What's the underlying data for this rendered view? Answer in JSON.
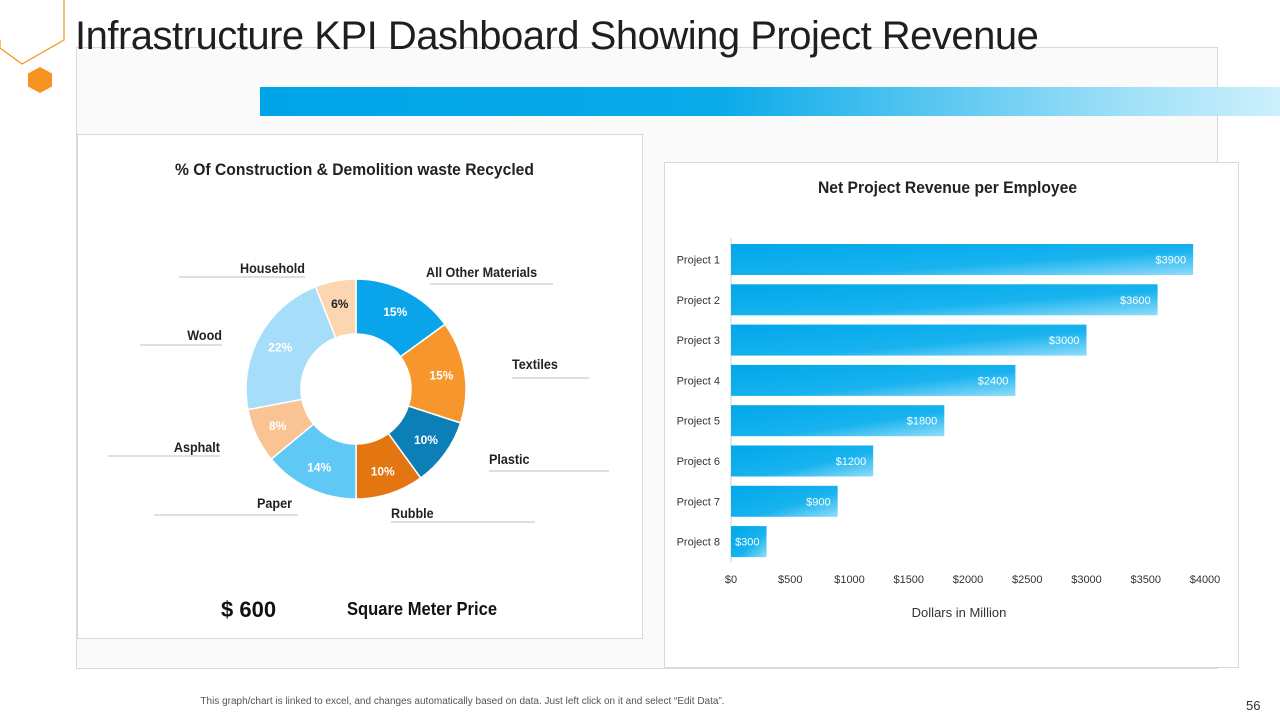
{
  "page": {
    "title": "Infrastructure KPI Dashboard Showing Project Revenue",
    "footer_note": "This graph/chart is linked to excel, and changes automatically based on data. Just left click on it and select “Edit Data”.",
    "page_number": "56"
  },
  "colors": {
    "accent": "#00a5e8",
    "hex_orange": "#f7931e",
    "panel_border": "#d9d9d9"
  },
  "price": {
    "value": "$ 600",
    "label": "Square Meter Price"
  },
  "chart_data": [
    {
      "type": "pie",
      "variant": "donut",
      "title": "% Of Construction & Demolition waste Recycled",
      "categories": [
        "All Other Materials",
        "Textiles",
        "Plastic",
        "Rubble",
        "Paper",
        "Asphalt",
        "Wood",
        "Household"
      ],
      "values": [
        15,
        15,
        10,
        10,
        14,
        8,
        22,
        6
      ],
      "data_labels": [
        "15%",
        "15%",
        "10%",
        "10%",
        "14%",
        "8%",
        "22%",
        "6%"
      ],
      "colors": [
        "#0aa4ea",
        "#f7962c",
        "#0c7fb6",
        "#e37611",
        "#5fc8f5",
        "#fac394",
        "#a6defa",
        "#fbd6b0"
      ],
      "label_colors": [
        "#ffffff",
        "#ffffff",
        "#ffffff",
        "#ffffff",
        "#ffffff",
        "#ffffff",
        "#ffffff",
        "#222222"
      ]
    },
    {
      "type": "bar",
      "orientation": "horizontal",
      "title": "Net Project Revenue per Employee",
      "categories": [
        "Project 1",
        "Project 2",
        "Project 3",
        "Project 4",
        "Project 5",
        "Project 6",
        "Project 7",
        "Project 8"
      ],
      "values": [
        3900,
        3600,
        3000,
        2400,
        1800,
        1200,
        900,
        300
      ],
      "data_labels": [
        "$3900",
        "$3600",
        "$3000",
        "$2400",
        "$1800",
        "$1200",
        "$900",
        "$300"
      ],
      "xlabel": "Dollars in Million",
      "ylabel": "",
      "xlim": [
        0,
        4000
      ],
      "xticks": [
        0,
        500,
        1000,
        1500,
        2000,
        2500,
        3000,
        3500,
        4000
      ],
      "xtick_labels": [
        "$0",
        "$500",
        "$1000",
        "$1500",
        "$2000",
        "$2500",
        "$3000",
        "$3500",
        "$4000"
      ],
      "grid": false
    }
  ]
}
